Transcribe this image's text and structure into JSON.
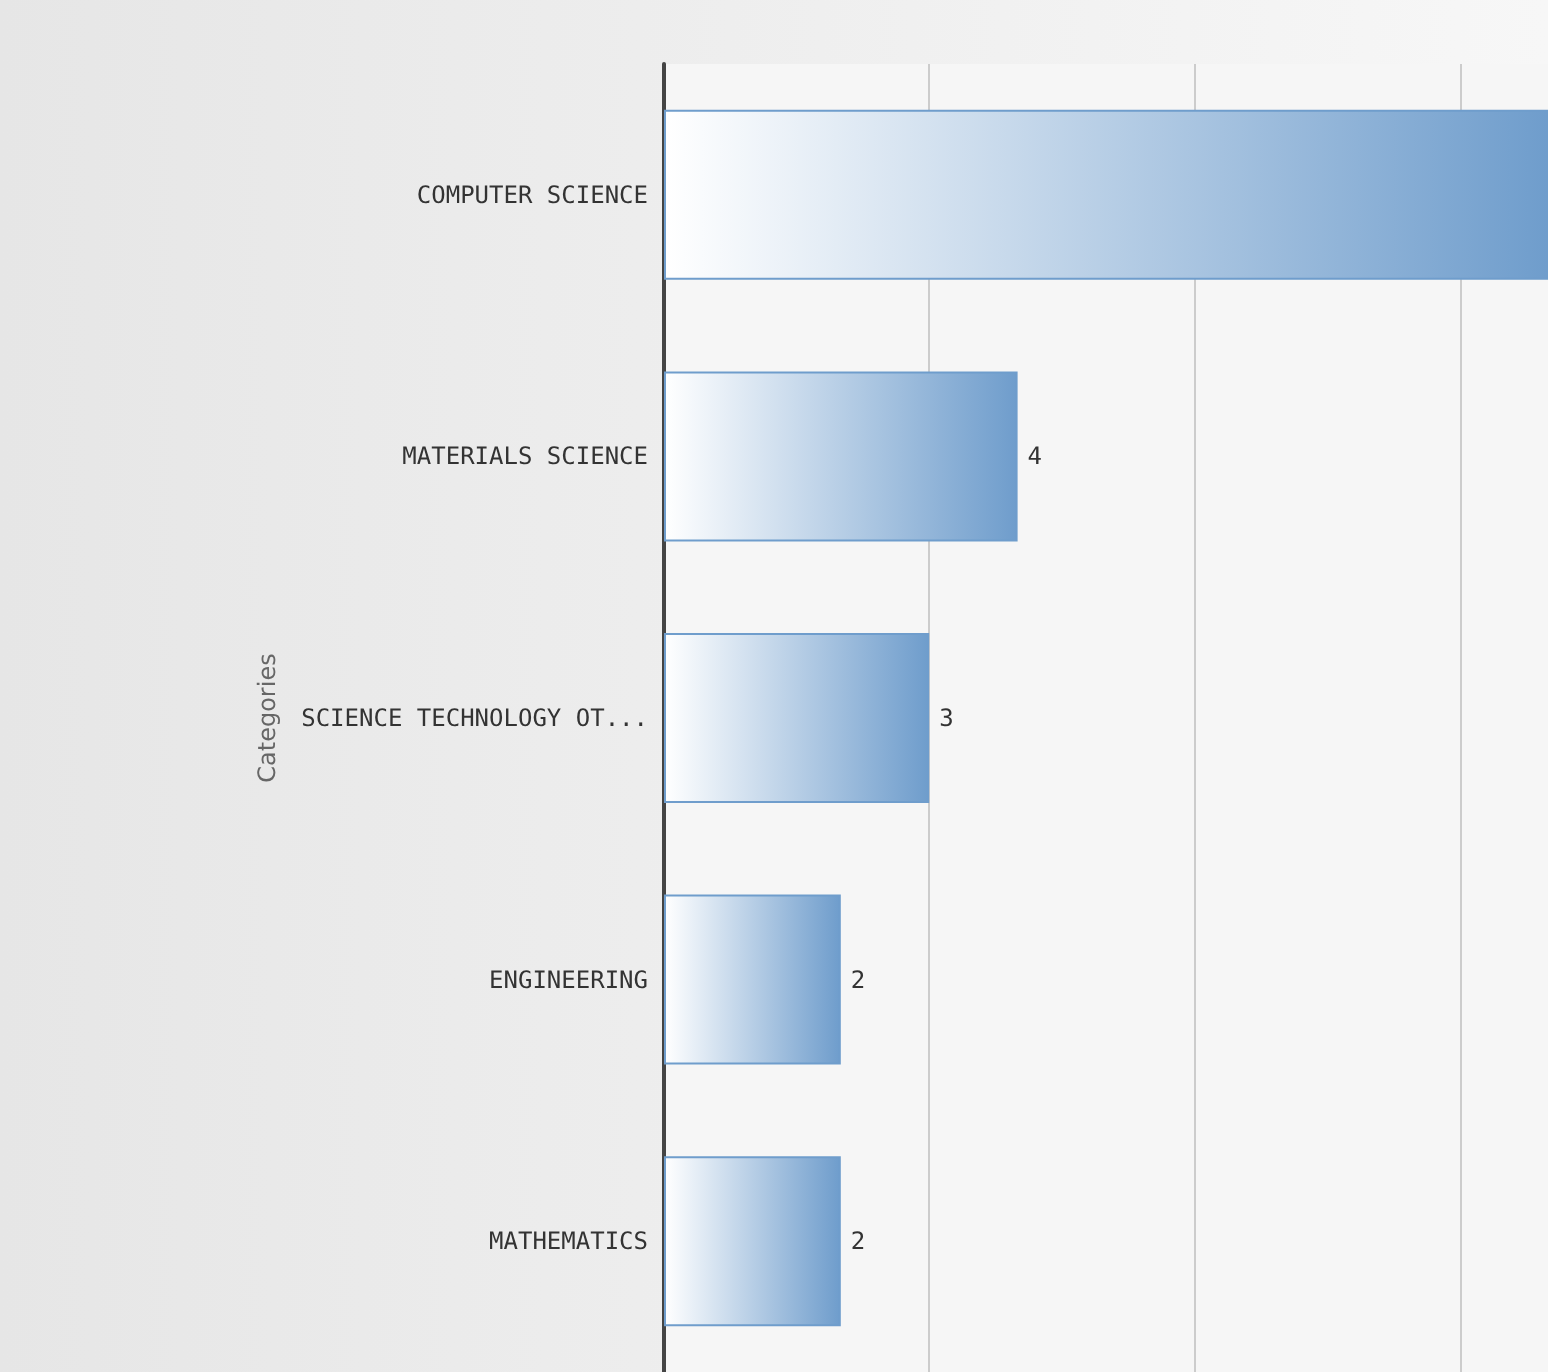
{
  "chart_data": {
    "type": "bar",
    "orientation": "horizontal",
    "ylabel": "Categories",
    "categories": [
      "COMPUTER SCIENCE",
      "MATERIALS SCIENCE",
      "SCIENCE TECHNOLOGY OT...",
      "ENGINEERING",
      "MATHEMATICS"
    ],
    "values": [
      10,
      4,
      3,
      2,
      2
    ],
    "value_labels": [
      null,
      "4",
      "3",
      "2",
      "2"
    ],
    "color": "#6f9dcc",
    "xlim": [
      0,
      10
    ],
    "xticks": [
      {
        "value": 0,
        "label": null
      },
      {
        "value": 3,
        "label": null
      },
      {
        "value": 6,
        "label": null
      },
      {
        "value": 9,
        "label": null
      }
    ],
    "tick_labels": "y",
    "grid": "x"
  }
}
